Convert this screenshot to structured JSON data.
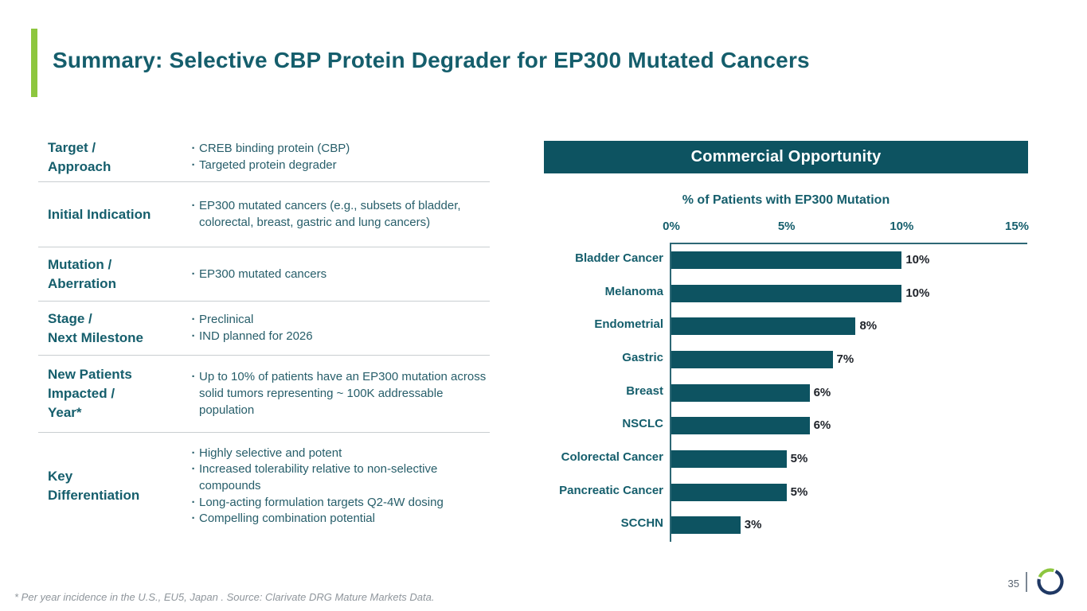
{
  "slide": {
    "title": "Summary: Selective CBP Protein Degrader for EP300 Mutated Cancers",
    "page_number": "35",
    "footnote": "* Per year incidence in the U.S., EU5, Japan . Source: Clarivate DRG Mature Markets Data."
  },
  "table": {
    "rows": [
      {
        "label": "Target /\nApproach",
        "bullets": [
          "CREB binding protein (CBP)",
          "Targeted protein degrader"
        ],
        "min_height": 62
      },
      {
        "label": "Initial Indication",
        "bullets": [
          "EP300 mutated cancers (e.g., subsets of bladder, colorectal, breast, gastric and lung cancers)"
        ],
        "min_height": 82
      },
      {
        "label": "Mutation /\nAberration",
        "bullets": [
          "EP300 mutated cancers"
        ],
        "min_height": 68
      },
      {
        "label": "Stage /\nNext Milestone",
        "bullets": [
          "Preclinical",
          "IND planned for 2026"
        ],
        "min_height": 68
      },
      {
        "label": "New Patients\nImpacted /\nYear*",
        "bullets": [
          "Up to 10% of patients have an EP300 mutation across solid tumors representing ~ 100K addressable population"
        ],
        "min_height": 97
      },
      {
        "label": "Key\nDifferentiation",
        "bullets": [
          "Highly selective and potent",
          "Increased tolerability relative to non-selective compounds",
          "Long-acting formulation targets Q2-4W dosing",
          "Compelling combination potential"
        ],
        "min_height": 134
      }
    ]
  },
  "panel": {
    "header": "Commercial Opportunity"
  },
  "chart_data": {
    "type": "bar",
    "orientation": "horizontal",
    "title": "% of Patients with EP300 Mutation",
    "categories": [
      "Bladder Cancer",
      "Melanoma",
      "Endometrial",
      "Gastric",
      "Breast",
      "NSCLC",
      "Colorectal Cancer",
      "Pancreatic Cancer",
      "SCCHN"
    ],
    "values": [
      10,
      10,
      8,
      7,
      6,
      6,
      5,
      5,
      3
    ],
    "value_labels": [
      "10%",
      "10%",
      "8%",
      "7%",
      "6%",
      "6%",
      "5%",
      "5%",
      "3%"
    ],
    "x_ticks": [
      "0%",
      "5%",
      "10%",
      "15%"
    ],
    "xlim": [
      0,
      15
    ],
    "grid": false,
    "legend": "none",
    "bar_color": "#0D5361"
  },
  "colors": {
    "accent_green": "#8DC63F",
    "teal_text": "#155E6C",
    "body_text": "#275E6A",
    "header_bg": "#0D5361",
    "bar_fill": "#0D5361",
    "value_text": "#20242B",
    "footnote_gray": "#8F969C",
    "page_num_gray": "#5A6572",
    "logo_navy": "#1F3864"
  },
  "logo": {
    "name": "ring-logo"
  }
}
